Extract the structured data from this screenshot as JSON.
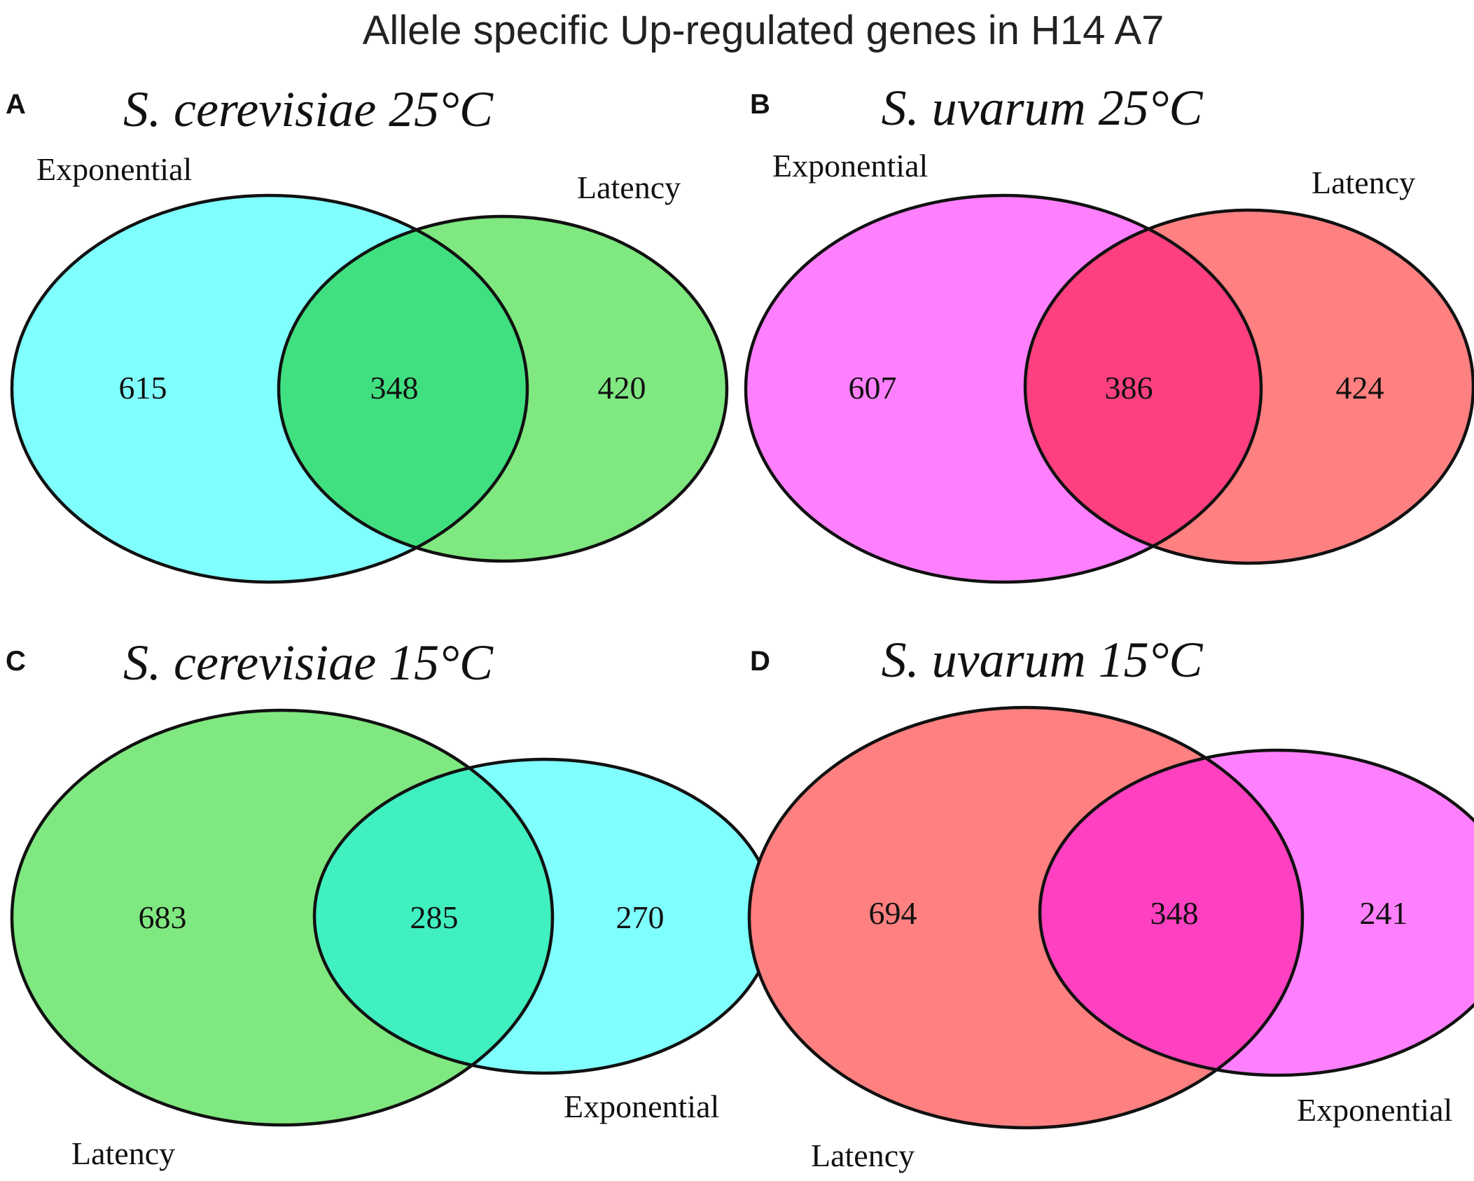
{
  "title": "Allele specific Up-regulated genes in H14 A7",
  "panels": [
    {
      "letter": "A",
      "heading": "S. cerevisiae 25°C",
      "left_label": "Exponential",
      "right_label": "Latency",
      "left_only": "615",
      "both": "348",
      "right_only": "420",
      "left_color": "#80FFFF",
      "right_color": "#80E880",
      "overlap_color": "#40E080"
    },
    {
      "letter": "B",
      "heading": "S. uvarum 25°C",
      "left_label": "Exponential",
      "right_label": "Latency",
      "left_only": "607",
      "both": "386",
      "right_only": "424",
      "left_color": "#FF80FF",
      "right_color": "#FF8080",
      "overlap_color": "#FF4080"
    },
    {
      "letter": "C",
      "heading": "S. cerevisiae 15°C",
      "left_label": "Latency",
      "right_label": "Exponential",
      "left_only": "683",
      "both": "285",
      "right_only": "270",
      "left_color": "#80E880",
      "right_color": "#80FFFF",
      "overlap_color": "#40F0C0"
    },
    {
      "letter": "D",
      "heading": "S. uvarum 15°C",
      "left_label": "Latency",
      "right_label": "Exponential",
      "left_only": "694",
      "both": "348",
      "right_only": "241",
      "left_color": "#FF8080",
      "right_color": "#FF80FF",
      "overlap_color": "#FF40C0"
    }
  ]
}
